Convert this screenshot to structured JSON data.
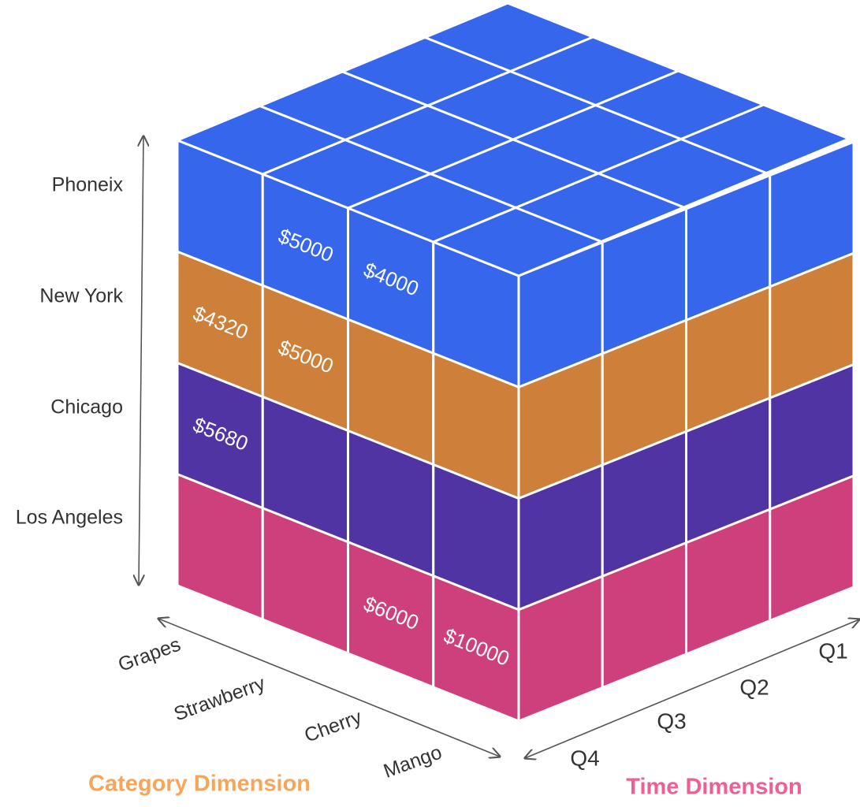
{
  "colors": {
    "phoenix": "#3566EC",
    "new_york": "#CE803B",
    "chicago": "#5034A4",
    "los_angeles": "#CE407C",
    "top": "#3566EC",
    "grid_line": "#FFFFFF",
    "category_title": "#F6A65A",
    "time_title": "#EE5F96",
    "label_text": "#333333"
  },
  "city_labels": [
    "Phoneix",
    "New York",
    "Chicago",
    "Los Angeles"
  ],
  "category_labels": [
    "Grapes",
    "Strawberry",
    "Cherry",
    "Mango"
  ],
  "time_labels": [
    "Q1",
    "Q2",
    "Q3",
    "Q4"
  ],
  "titles": {
    "category": "Category Dimension",
    "time": "Time Dimension"
  },
  "cell_values": [
    {
      "city": "Phoneix",
      "category": "Strawberry",
      "value": "$5000"
    },
    {
      "city": "Phoneix",
      "category": "Cherry",
      "value": "$4000"
    },
    {
      "city": "New York",
      "category": "Grapes",
      "value": "$4320"
    },
    {
      "city": "New York",
      "category": "Strawberry",
      "value": "$5000"
    },
    {
      "city": "Chicago",
      "category": "Grapes",
      "value": "$5680"
    },
    {
      "city": "Los Angeles",
      "category": "Cherry",
      "value": "$6000"
    },
    {
      "city": "Los Angeles",
      "category": "Mango",
      "value": "$10000"
    }
  ]
}
